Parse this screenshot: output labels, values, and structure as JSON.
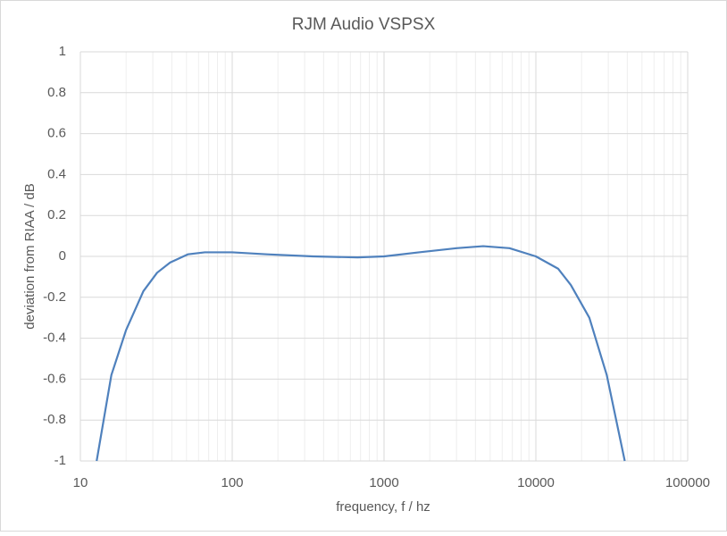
{
  "chart_data": {
    "type": "line",
    "title": "RJM Audio VSPSX",
    "x_label": "frequency, f / hz",
    "y_label": "deviation from RIAA / dB",
    "x": [
      12.8,
      16,
      20,
      26,
      32,
      39,
      51,
      66,
      100,
      170,
      340,
      670,
      1000,
      1700,
      3000,
      4500,
      6700,
      10000,
      14000,
      17000,
      22500,
      29300,
      38500
    ],
    "series": [
      {
        "name": "VSPSX",
        "color": "#4f81bd",
        "values": [
          -1,
          -0.58,
          -0.36,
          -0.17,
          -0.08,
          -0.03,
          0.01,
          0.02,
          0.02,
          0.01,
          0,
          -0.005,
          0,
          0.02,
          0.04,
          0.05,
          0.04,
          0,
          -0.06,
          -0.14,
          -0.3,
          -0.58,
          -1
        ]
      }
    ],
    "xscale": "log",
    "xlim": [
      10,
      100000
    ],
    "xticks": [
      10,
      100,
      1000,
      10000,
      100000
    ],
    "ylim": [
      -1,
      1
    ],
    "yticks": [
      1,
      0.8,
      0.6,
      0.4,
      0.2,
      0,
      -0.2,
      -0.4,
      -0.6,
      -0.8,
      -1
    ],
    "grid": true
  }
}
